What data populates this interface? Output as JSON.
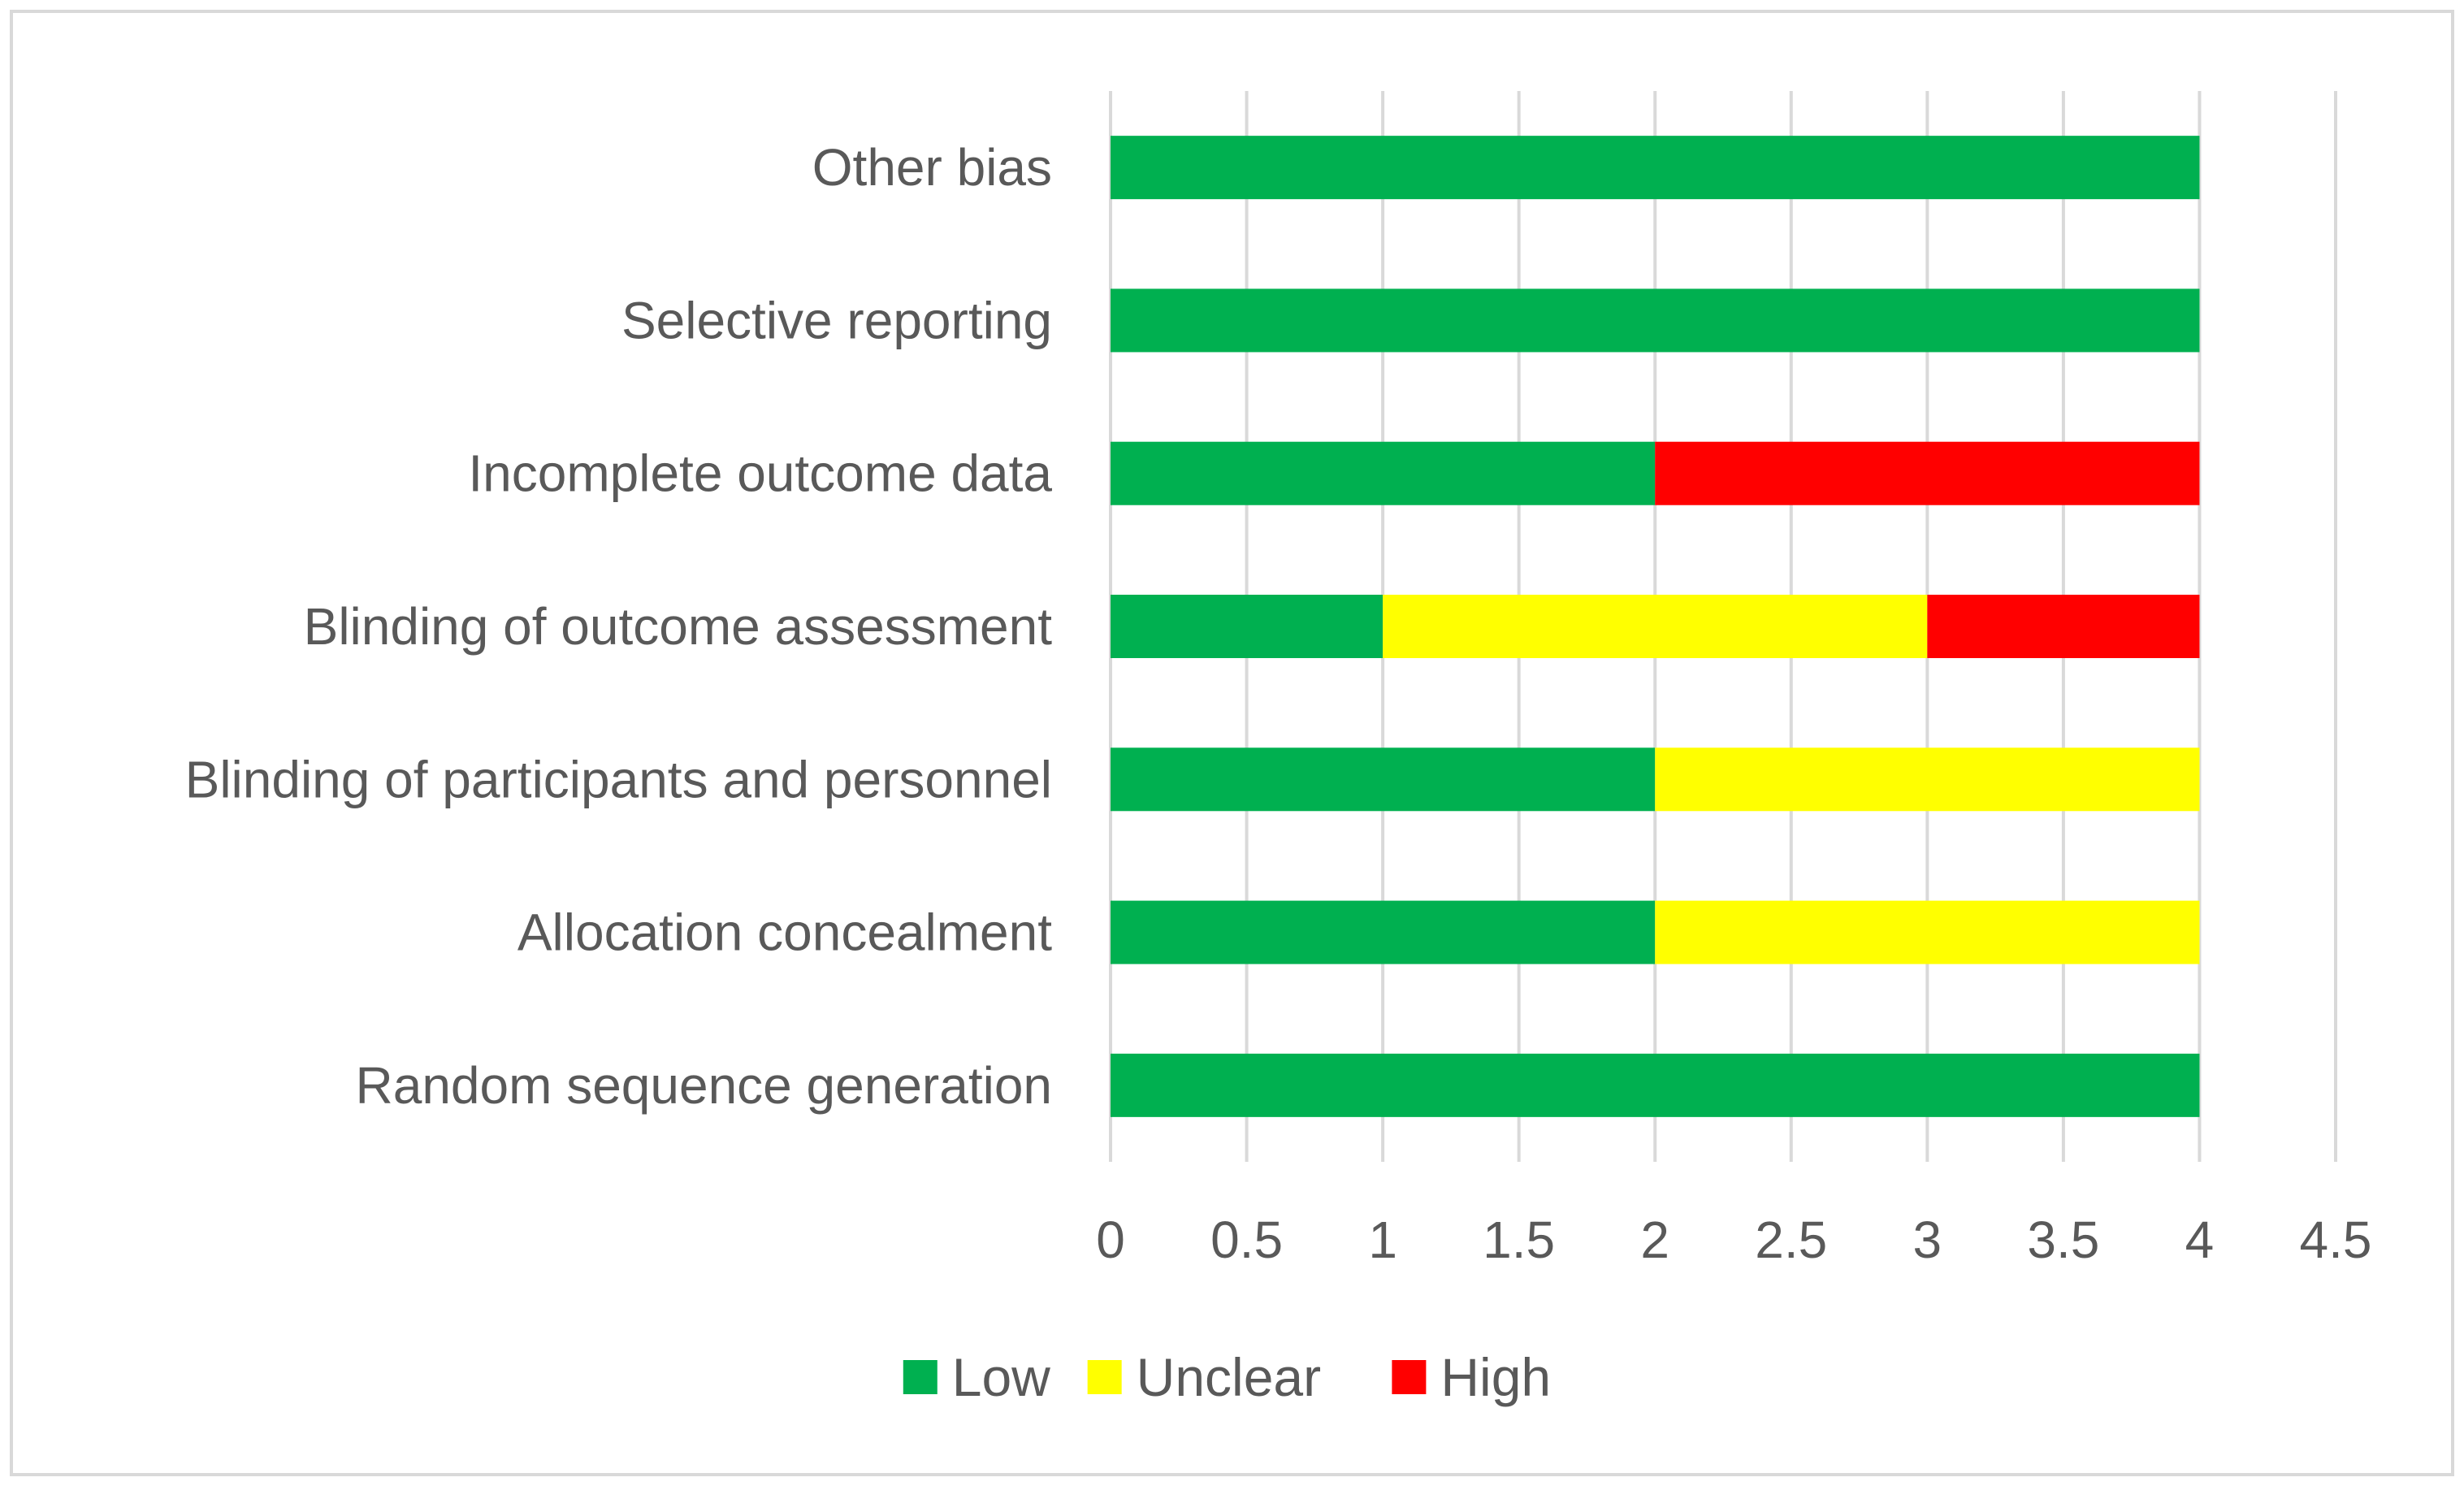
{
  "chart_data": {
    "type": "bar",
    "orientation": "horizontal",
    "stacked": true,
    "title": "",
    "xlabel": "",
    "ylabel": "",
    "xlim": [
      0,
      4.5
    ],
    "x_ticks": [
      "0",
      "0.5",
      "1",
      "1.5",
      "2",
      "2.5",
      "3",
      "3.5",
      "4",
      "4.5"
    ],
    "x_tick_values": [
      0,
      0.5,
      1,
      1.5,
      2,
      2.5,
      3,
      3.5,
      4,
      4.5
    ],
    "grid": "vertical",
    "legend_position": "bottom",
    "categories": [
      "Random sequence generation",
      "Allocation concealment",
      "Blinding of participants and personnel",
      "Blinding of outcome assessment",
      "Incomplete outcome data",
      "Selective reporting",
      "Other bias"
    ],
    "series": [
      {
        "name": "Low",
        "color": "#00B050",
        "values": [
          4,
          2,
          2,
          1,
          2,
          4,
          4
        ]
      },
      {
        "name": "Unclear",
        "color": "#FFFF00",
        "values": [
          0,
          2,
          2,
          2,
          0,
          0,
          0
        ]
      },
      {
        "name": "High",
        "color": "#FF0000",
        "values": [
          0,
          0,
          0,
          1,
          2,
          0,
          0
        ]
      }
    ],
    "colors": {
      "frame": "#D9D9D9",
      "gridline": "#D9D9D9",
      "text": "#595959"
    }
  }
}
